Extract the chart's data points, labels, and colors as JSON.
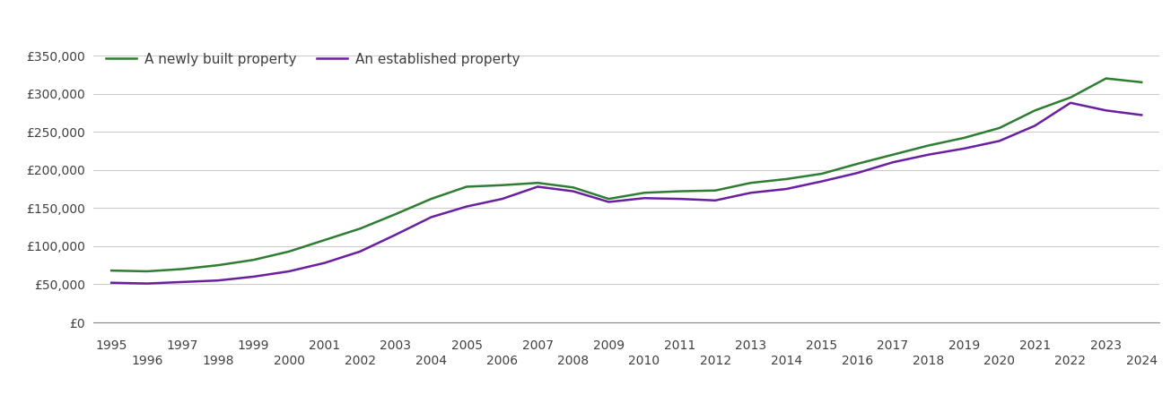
{
  "newly_built": {
    "years": [
      1995,
      1996,
      1997,
      1998,
      1999,
      2000,
      2001,
      2002,
      2003,
      2004,
      2005,
      2006,
      2007,
      2008,
      2009,
      2010,
      2011,
      2012,
      2013,
      2014,
      2015,
      2016,
      2017,
      2018,
      2019,
      2020,
      2021,
      2022,
      2023,
      2024
    ],
    "values": [
      68000,
      67000,
      70000,
      75000,
      82000,
      93000,
      108000,
      123000,
      142000,
      162000,
      178000,
      180000,
      183000,
      177000,
      162000,
      170000,
      172000,
      173000,
      183000,
      188000,
      195000,
      208000,
      220000,
      232000,
      242000,
      255000,
      278000,
      295000,
      320000,
      315000
    ]
  },
  "established": {
    "years": [
      1995,
      1996,
      1997,
      1998,
      1999,
      2000,
      2001,
      2002,
      2003,
      2004,
      2005,
      2006,
      2007,
      2008,
      2009,
      2010,
      2011,
      2012,
      2013,
      2014,
      2015,
      2016,
      2017,
      2018,
      2019,
      2020,
      2021,
      2022,
      2023,
      2024
    ],
    "values": [
      52000,
      51000,
      53000,
      55000,
      60000,
      67000,
      78000,
      93000,
      115000,
      138000,
      152000,
      162000,
      178000,
      172000,
      158000,
      163000,
      162000,
      160000,
      170000,
      175000,
      185000,
      196000,
      210000,
      220000,
      228000,
      238000,
      258000,
      288000,
      278000,
      272000
    ]
  },
  "newly_color": "#2e7d32",
  "established_color": "#6a1fa0",
  "legend_labels": [
    "A newly built property",
    "An established property"
  ],
  "ylim": [
    0,
    370000
  ],
  "yticks": [
    0,
    50000,
    100000,
    150000,
    200000,
    250000,
    300000,
    350000
  ],
  "ytick_labels": [
    "£0",
    "£50,000",
    "£100,000",
    "£150,000",
    "£200,000",
    "£250,000",
    "£300,000",
    "£350,000"
  ],
  "background_color": "#ffffff",
  "grid_color": "#cccccc",
  "line_width": 1.8,
  "font_color": "#404040",
  "font_size_ticks": 10,
  "font_size_legend": 11
}
